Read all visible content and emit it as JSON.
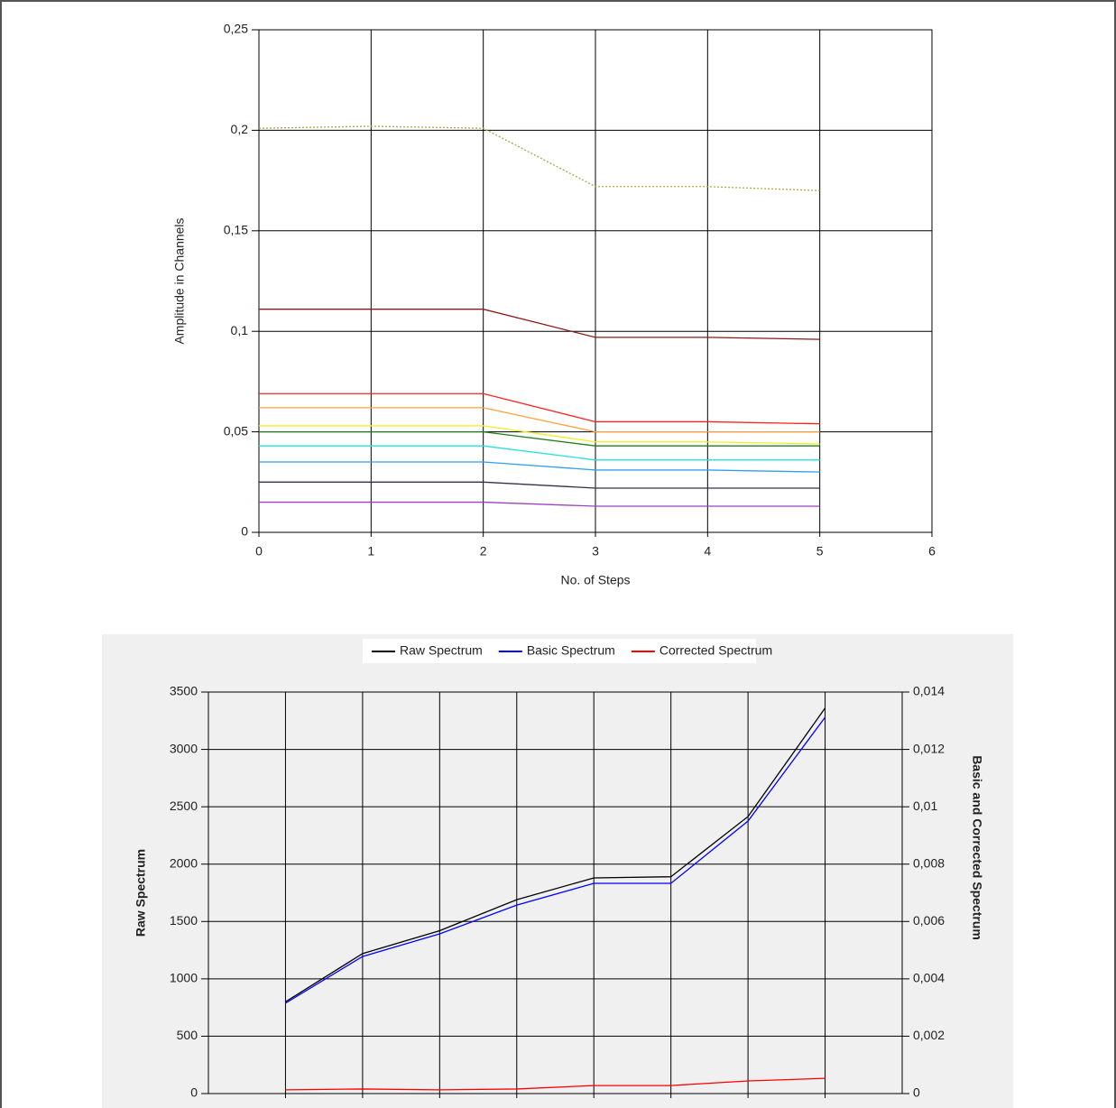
{
  "chart_data": [
    {
      "type": "line",
      "x_label": "No. of Steps",
      "y_label": "Amplitude in Channels",
      "x": [
        0,
        1,
        2,
        3,
        4,
        5
      ],
      "xlim": [
        0,
        6
      ],
      "xticks": [
        0,
        1,
        2,
        3,
        4,
        5,
        6
      ],
      "ylim": [
        0,
        0.25
      ],
      "yticks": [
        0,
        {
          "value": 0.05,
          "label": "0,05"
        },
        {
          "value": 0.1,
          "label": "0,1"
        },
        {
          "value": 0.15,
          "label": "0,15"
        },
        {
          "value": 0.2,
          "label": "0,2"
        },
        {
          "value": 0.25,
          "label": "0,25"
        }
      ],
      "grid": true,
      "series": [
        {
          "color": "#a8a840",
          "style": "dotted",
          "values": [
            0.201,
            0.202,
            0.201,
            0.172,
            0.172,
            0.17
          ]
        },
        {
          "color": "#8b1a1a",
          "values": [
            0.111,
            0.111,
            0.111,
            0.097,
            0.097,
            0.096
          ]
        },
        {
          "color": "#ff2020",
          "values": [
            0.069,
            0.069,
            0.069,
            0.055,
            0.055,
            0.054
          ]
        },
        {
          "color": "#ffa040",
          "values": [
            0.062,
            0.062,
            0.062,
            0.05,
            0.05,
            0.05
          ]
        },
        {
          "color": "#f0f020",
          "values": [
            0.053,
            0.053,
            0.053,
            0.045,
            0.045,
            0.044
          ]
        },
        {
          "color": "#208020",
          "values": [
            0.05,
            0.05,
            0.05,
            0.043,
            0.043,
            0.043
          ]
        },
        {
          "color": "#20e0e0",
          "values": [
            0.043,
            0.043,
            0.043,
            0.036,
            0.036,
            0.036
          ]
        },
        {
          "color": "#30a0f0",
          "values": [
            0.035,
            0.035,
            0.035,
            0.031,
            0.031,
            0.03
          ]
        },
        {
          "color": "#303050",
          "values": [
            0.025,
            0.025,
            0.025,
            0.022,
            0.022,
            0.022
          ]
        },
        {
          "color": "#a040c0",
          "values": [
            0.015,
            0.015,
            0.015,
            0.013,
            0.013,
            0.013
          ]
        }
      ]
    },
    {
      "type": "line",
      "y_label": "Raw Spectrum",
      "y2_label": "Basic and Corrected Spectrum",
      "categories": [
        null,
        null,
        null,
        null,
        null,
        null,
        null,
        null
      ],
      "ylim": [
        0,
        3500
      ],
      "yticks": [
        0,
        500,
        1000,
        1500,
        2000,
        2500,
        3000,
        3500
      ],
      "y2lim": [
        0,
        0.014
      ],
      "y2ticks": [
        0,
        {
          "value": 0.002,
          "label": "0,002"
        },
        {
          "value": 0.004,
          "label": "0,004"
        },
        {
          "value": 0.006,
          "label": "0,006"
        },
        {
          "value": 0.008,
          "label": "0,008"
        },
        {
          "value": 0.01,
          "label": "0,01"
        },
        {
          "value": 0.012,
          "label": "0,012"
        },
        {
          "value": 0.014,
          "label": "0,014"
        }
      ],
      "grid": true,
      "legend": "top",
      "series": [
        {
          "name": "Raw Spectrum",
          "color": "#000000",
          "values": [
            800,
            1220,
            1420,
            1690,
            1880,
            1890,
            2415,
            3360
          ]
        },
        {
          "name": "Basic Spectrum",
          "color": "#0000ff",
          "axis": "y2",
          "values": [
            0.00315,
            0.00478,
            0.00557,
            0.00657,
            0.00733,
            0.00733,
            0.0095,
            0.01312
          ]
        },
        {
          "name": "Corrected Spectrum",
          "color": "#ff0000",
          "axis": "y2",
          "values": [
            0.00013,
            0.00016,
            0.00013,
            0.00016,
            0.00028,
            0.00028,
            0.00044,
            0.00053
          ]
        }
      ]
    }
  ]
}
